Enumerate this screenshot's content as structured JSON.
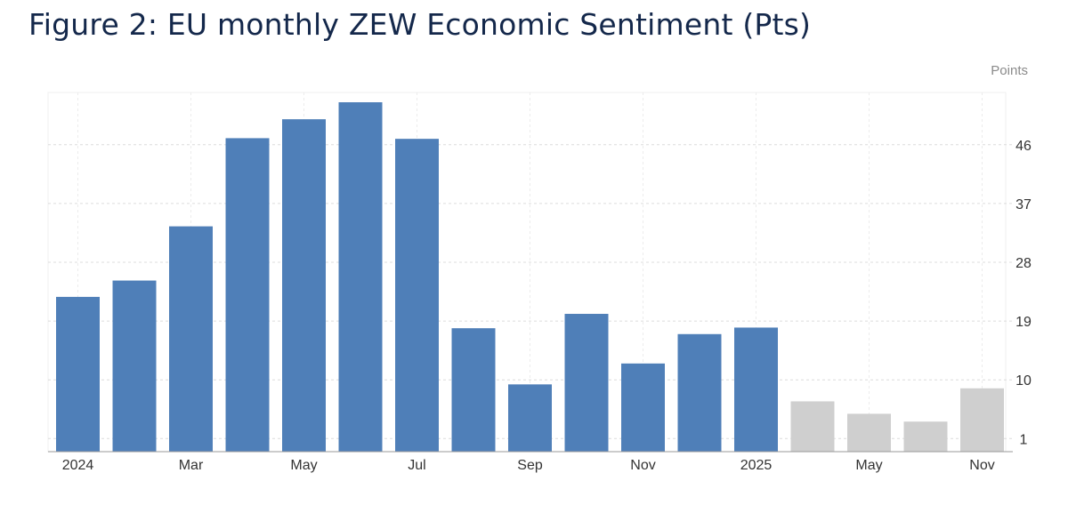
{
  "title": "Figure 2: EU monthly ZEW Economic Sentiment (Pts)",
  "colors": {
    "actual": "#4f7fb8",
    "forecast": "#cfcfcf",
    "grid": "#dcdcdc",
    "axis": "#9a9a9a",
    "title": "#14284b"
  },
  "chart_data": {
    "type": "bar",
    "unit_label": "Points",
    "y_axis_position": "right",
    "grid": true,
    "legend": "none",
    "ylim": [
      -1,
      54
    ],
    "yticks": [
      1,
      10,
      19,
      28,
      37,
      46
    ],
    "x_tick_labels": [
      {
        "index": 0,
        "label": "2024"
      },
      {
        "index": 2,
        "label": "Mar"
      },
      {
        "index": 4,
        "label": "May"
      },
      {
        "index": 6,
        "label": "Jul"
      },
      {
        "index": 8,
        "label": "Sep"
      },
      {
        "index": 10,
        "label": "Nov"
      },
      {
        "index": 12,
        "label": "2025"
      },
      {
        "index": 14,
        "label": "May"
      },
      {
        "index": 16,
        "label": "Nov"
      }
    ],
    "series": [
      {
        "kind": "actual",
        "values": [
          {
            "index": 0,
            "value": 22.7
          },
          {
            "index": 1,
            "value": 25.2
          },
          {
            "index": 2,
            "value": 33.5
          },
          {
            "index": 3,
            "value": 47.0
          },
          {
            "index": 4,
            "value": 49.9
          },
          {
            "index": 5,
            "value": 52.5
          },
          {
            "index": 6,
            "value": 46.9
          },
          {
            "index": 7,
            "value": 17.9
          },
          {
            "index": 8,
            "value": 9.3
          },
          {
            "index": 9,
            "value": 20.1
          },
          {
            "index": 10,
            "value": 12.5
          },
          {
            "index": 11,
            "value": 17.0
          },
          {
            "index": 12,
            "value": 18.0
          }
        ]
      },
      {
        "kind": "forecast",
        "values": [
          {
            "index": 13,
            "value": 6.7
          },
          {
            "index": 14,
            "value": 4.8
          },
          {
            "index": 15,
            "value": 3.6
          },
          {
            "index": 16,
            "value": 8.7
          }
        ]
      }
    ]
  }
}
